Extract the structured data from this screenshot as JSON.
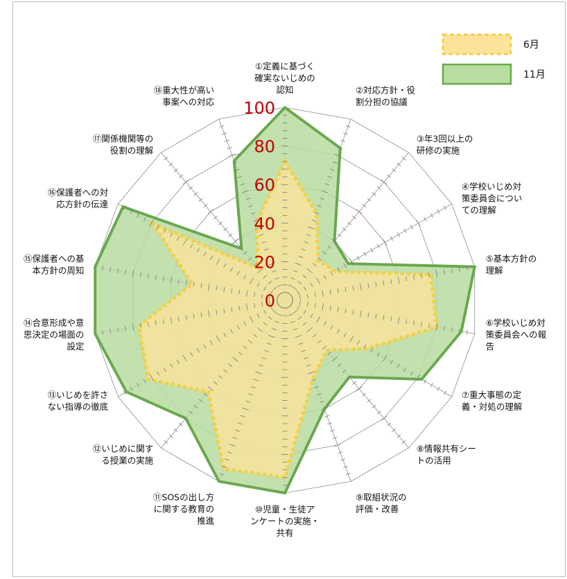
{
  "chart_data": {
    "type": "radar",
    "categories": [
      "①定義に基づく|確実ないじめの|認知",
      "②対応方針・役|割分担の協議",
      "③年3回以上の|研修の実施",
      "④学校いじめ対|策委員会につい|ての理解",
      "⑤基本方針の|理解",
      "⑥学校いじめ対|策委員会への報|告",
      "⑦重大事態の定|義・対処の理解",
      "⑧情報共有シー|トの活用",
      "⑨取組状況の|評価・改善",
      "⑩児童・生徒ア|ンケートの実施・|共有",
      "⑪SOSの出し方|に関する教育の|推進",
      "⑫いじめに関す|る授業の実施",
      "⑬いじめを許さ|ない指導の徹底",
      "⑭合意形成や意|思決定の場面の|設定",
      "⑮保護者への基|本方針の周知",
      "⑯保護者への対|応方針の伝達",
      "⑰関係機関等の|役割の理解",
      "⑱重大性が高い|事案への対応"
    ],
    "series": [
      {
        "name": "6月",
        "values": [
          72,
          48,
          27,
          30,
          77,
          80,
          50,
          34,
          43,
          92,
          93,
          62,
          82,
          77,
          49,
          79,
          22,
          43
        ],
        "color": "#f2cf4a",
        "fill": "#fde39a"
      },
      {
        "name": "11月",
        "values": [
          100,
          84,
          40,
          38,
          100,
          93,
          82,
          52,
          60,
          100,
          100,
          80,
          95,
          100,
          100,
          97,
          35,
          77
        ],
        "color": "#6aa84f",
        "fill": "#b9dca0"
      }
    ],
    "rlim": [
      0,
      100
    ],
    "ticks": [
      "0",
      "20",
      "40",
      "60",
      "80",
      "100"
    ],
    "legend_position": "top-right"
  }
}
